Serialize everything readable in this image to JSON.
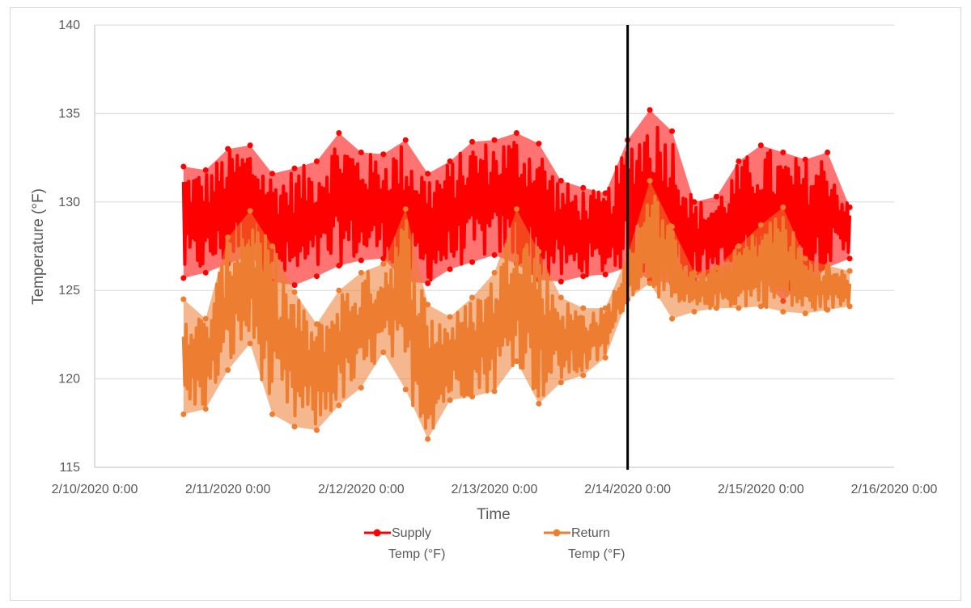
{
  "chart_data": {
    "type": "scatter",
    "title": "",
    "xlabel": "Time",
    "ylabel": "Temperature (°F)",
    "ylim": [
      115,
      140
    ],
    "yticks": [
      "115",
      "120",
      "125",
      "130",
      "135",
      "140"
    ],
    "xlim": [
      "2020-02-10T00:00",
      "2020-02-16T00:00"
    ],
    "xticks": [
      "2/10/2020 0:00",
      "2/11/2020 0:00",
      "2/12/2020 0:00",
      "2/13/2020 0:00",
      "2/14/2020 0:00",
      "2/15/2020 0:00",
      "2/16/2020 0:00"
    ],
    "grid": "horizontal",
    "legend_position": "bottom",
    "vertical_marker": {
      "x": "2020-02-14T00:00",
      "color": "#000000"
    },
    "series": [
      {
        "name": "Supply Temp (°F)",
        "legend_lines": [
          "Supply",
          "Temp (°F)"
        ],
        "color": "#ff0000",
        "x": [
          "2020-02-10T16:00",
          "2020-02-10T20:00",
          "2020-02-11T00:00",
          "2020-02-11T04:00",
          "2020-02-11T08:00",
          "2020-02-11T12:00",
          "2020-02-11T16:00",
          "2020-02-11T20:00",
          "2020-02-12T00:00",
          "2020-02-12T04:00",
          "2020-02-12T08:00",
          "2020-02-12T12:00",
          "2020-02-12T16:00",
          "2020-02-12T20:00",
          "2020-02-13T00:00",
          "2020-02-13T04:00",
          "2020-02-13T08:00",
          "2020-02-13T12:00",
          "2020-02-13T16:00",
          "2020-02-13T20:00",
          "2020-02-14T00:00",
          "2020-02-14T04:00",
          "2020-02-14T08:00",
          "2020-02-14T12:00",
          "2020-02-14T16:00",
          "2020-02-14T20:00",
          "2020-02-15T00:00",
          "2020-02-15T04:00",
          "2020-02-15T08:00",
          "2020-02-15T12:00",
          "2020-02-15T16:00"
        ],
        "low": [
          125.7,
          126.0,
          126.5,
          127.0,
          125.5,
          125.3,
          125.8,
          126.4,
          126.7,
          126.8,
          125.5,
          125.4,
          126.2,
          126.6,
          127.0,
          126.5,
          125.6,
          125.5,
          125.8,
          125.9,
          126.3,
          125.6,
          125.4,
          125.6,
          125.8,
          125.4,
          125.7,
          124.4,
          125.6,
          126.3,
          126.8
        ],
        "high": [
          132.0,
          131.8,
          133.0,
          133.2,
          131.6,
          131.9,
          132.3,
          133.9,
          132.8,
          132.7,
          133.5,
          131.6,
          132.3,
          133.4,
          133.5,
          133.9,
          133.3,
          131.2,
          130.8,
          130.5,
          133.5,
          135.2,
          134.0,
          130.0,
          130.3,
          132.3,
          133.2,
          132.8,
          132.4,
          132.8,
          129.7
        ]
      },
      {
        "name": "Return Temp (°F)",
        "legend_lines": [
          "Return",
          "Temp (°F)"
        ],
        "color": "#ed7d31",
        "x": [
          "2020-02-10T16:00",
          "2020-02-10T20:00",
          "2020-02-11T00:00",
          "2020-02-11T04:00",
          "2020-02-11T08:00",
          "2020-02-11T12:00",
          "2020-02-11T16:00",
          "2020-02-11T20:00",
          "2020-02-12T00:00",
          "2020-02-12T04:00",
          "2020-02-12T08:00",
          "2020-02-12T12:00",
          "2020-02-12T16:00",
          "2020-02-12T20:00",
          "2020-02-13T00:00",
          "2020-02-13T04:00",
          "2020-02-13T08:00",
          "2020-02-13T12:00",
          "2020-02-13T16:00",
          "2020-02-13T20:00",
          "2020-02-14T00:00",
          "2020-02-14T04:00",
          "2020-02-14T08:00",
          "2020-02-14T12:00",
          "2020-02-14T16:00",
          "2020-02-14T20:00",
          "2020-02-15T00:00",
          "2020-02-15T04:00",
          "2020-02-15T08:00",
          "2020-02-15T12:00",
          "2020-02-15T16:00"
        ],
        "low": [
          118.0,
          118.3,
          120.5,
          122.0,
          118.0,
          117.3,
          117.1,
          118.5,
          119.5,
          121.5,
          119.4,
          116.6,
          118.8,
          119.0,
          119.3,
          121.0,
          118.6,
          119.8,
          120.2,
          121.2,
          124.5,
          125.4,
          123.4,
          123.8,
          124.0,
          124.0,
          124.1,
          123.8,
          123.7,
          123.9,
          124.1
        ],
        "high": [
          124.5,
          123.4,
          128.0,
          129.5,
          127.5,
          124.9,
          123.1,
          125.0,
          126.0,
          126.5,
          129.6,
          124.2,
          123.5,
          124.6,
          126.0,
          129.6,
          127.2,
          124.6,
          124.0,
          124.0,
          127.0,
          131.2,
          128.6,
          126.0,
          126.3,
          127.5,
          128.7,
          129.7,
          126.8,
          126.4,
          126.1
        ]
      }
    ]
  }
}
